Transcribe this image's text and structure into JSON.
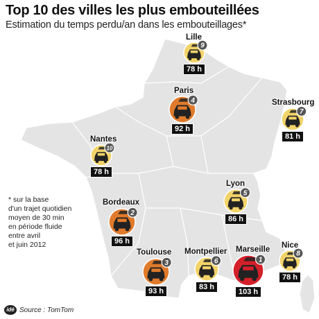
{
  "title": "Top 10 des villes les plus embouteillées",
  "subtitle": "Estimation du temps perdu/an dans les embouteillages*",
  "note": [
    "* sur la base",
    "d'un trajet quotidien",
    "moyen de 30 min",
    "en période fluide",
    "entre avril",
    "et juin 2012"
  ],
  "source": "Source : TomTom",
  "logo_text": "idé",
  "colors": {
    "rank1": "#d4202a",
    "rank2_4": "#e07a2c",
    "rank5_10": "#f2d36a",
    "land": "#e4e4e4",
    "border": "#ffffff",
    "badge": "#555555"
  },
  "cities": [
    {
      "name": "Marseille",
      "rank": "1",
      "hours": "103 h",
      "icon": "car-icon"
    },
    {
      "name": "Bordeaux",
      "rank": "2",
      "hours": "96 h",
      "icon": "car-icon"
    },
    {
      "name": "Toulouse",
      "rank": "3",
      "hours": "93 h",
      "icon": "car-icon"
    },
    {
      "name": "Paris",
      "rank": "4",
      "hours": "92 h",
      "icon": "car-icon"
    },
    {
      "name": "Lyon",
      "rank": "5",
      "hours": "86 h",
      "icon": "car-icon"
    },
    {
      "name": "Montpellier",
      "rank": "6",
      "hours": "83 h",
      "icon": "car-icon"
    },
    {
      "name": "Strasbourg",
      "rank": "7",
      "hours": "81 h",
      "icon": "car-icon"
    },
    {
      "name": "Nice",
      "rank": "8",
      "hours": "78 h",
      "icon": "car-icon"
    },
    {
      "name": "Lille",
      "rank": "9",
      "hours": "78 h",
      "icon": "car-icon"
    },
    {
      "name": "Nantes",
      "rank": "10",
      "hours": "78 h",
      "icon": "car-icon"
    }
  ]
}
